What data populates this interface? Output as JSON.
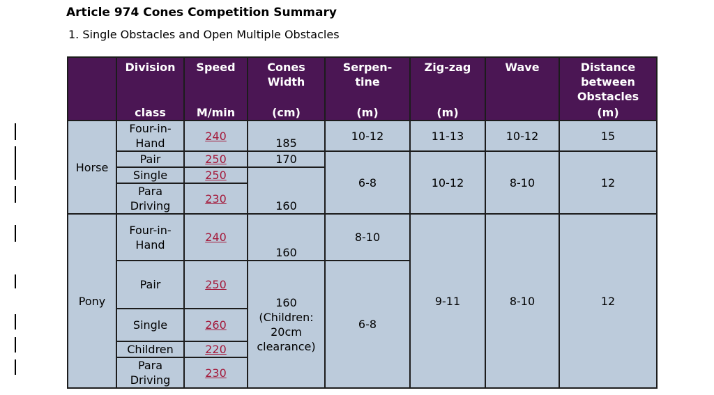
{
  "title": "Article 974 Cones Competition Summary",
  "subtitle": "1. Single Obstacles and Open Multiple Obstacles",
  "headers": {
    "division_top": "Division",
    "division_bottom": "class",
    "speed_top": "Speed",
    "speed_bottom": "M/min",
    "cones_top": "Cones\nWidth",
    "cones_bottom": "(cm)",
    "serpentine_top": "Serpen-\ntine",
    "serpentine_bottom": "(m)",
    "zigzag_top": "Zig-zag",
    "zigzag_bottom": "(m)",
    "wave": "Wave",
    "distance_top": "Distance\nbetween\nObstacles",
    "distance_bottom": "(m)"
  },
  "horse": {
    "group": "Horse",
    "classes": [
      "Four-in-\nHand",
      "Pair",
      "Single",
      "Para\nDriving"
    ],
    "speeds": [
      "240",
      "250",
      "250",
      "230"
    ],
    "cones": [
      "185",
      "170",
      "160"
    ],
    "serpentine": [
      "10-12",
      "6-8"
    ],
    "zigzag": [
      "11-13",
      "10-12"
    ],
    "wave": [
      "10-12",
      "8-10"
    ],
    "distance": [
      "15",
      "12"
    ]
  },
  "pony": {
    "group": "Pony",
    "classes": [
      "Four-in-\nHand",
      "Pair",
      "Single",
      "Children",
      "Para\nDriving"
    ],
    "speeds": [
      "240",
      "250",
      "260",
      "220",
      "230"
    ],
    "cones": [
      "160",
      "160\n(Children:\n20cm\nclearance)"
    ],
    "serpentine": [
      "8-10",
      "6-8"
    ],
    "zigzag": "9-11",
    "wave": "8-10",
    "distance": "12"
  }
}
